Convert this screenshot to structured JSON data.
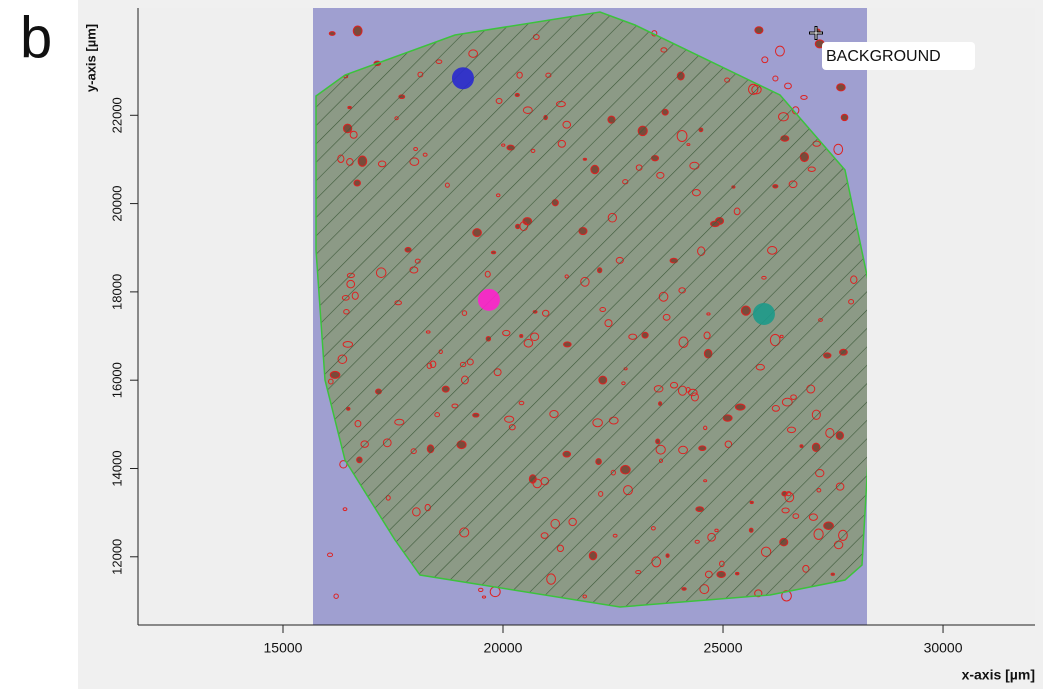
{
  "chart_data": {
    "type": "scatter",
    "panel_label": "b",
    "annotation": "BACKGROUND",
    "x_label": "x-axis [µm]",
    "y_label": "y-axis [µm]",
    "xlim": [
      11705,
      32090
    ],
    "ylim": [
      10455,
      24430
    ],
    "xticks": [
      15000,
      20000,
      25000,
      30000
    ],
    "yticks": [
      12000,
      14000,
      16000,
      18000,
      20000,
      22000
    ],
    "x": [
      19090,
      19680,
      25930
    ],
    "values": [
      22840,
      17820,
      17500
    ],
    "colors": [
      "#2a2ad0",
      "#ff22cc",
      "#1e9a8a"
    ]
  }
}
